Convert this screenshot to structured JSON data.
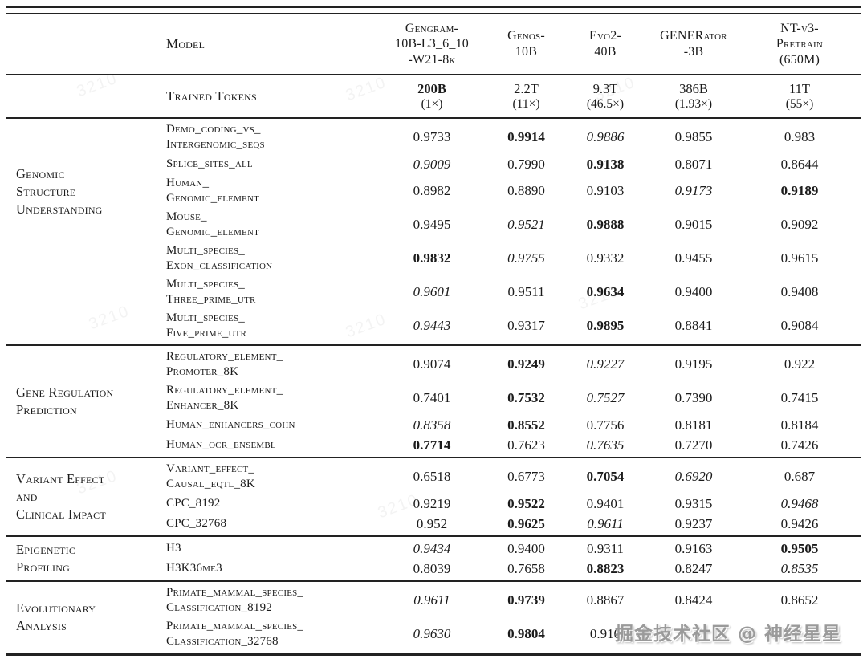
{
  "header": {
    "model_label": "Model",
    "columns": [
      {
        "name": "Gengram-\n10B-L3_6_10\n-W21-8k"
      },
      {
        "name": "Genos-\n10B"
      },
      {
        "name": "Evo2-\n40B"
      },
      {
        "name": "GENERator\n-3B"
      },
      {
        "name": "NT-v3-\nPretrain\n(650M)"
      }
    ],
    "trained_tokens_label": "Trained Tokens",
    "trained_tokens": [
      {
        "tokens": "200B",
        "multiplier": "(1×)"
      },
      {
        "tokens": "2.2T",
        "multiplier": "(11×)"
      },
      {
        "tokens": "9.3T",
        "multiplier": "(46.5×)"
      },
      {
        "tokens": "386B",
        "multiplier": "(1.93×)"
      },
      {
        "tokens": "11T",
        "multiplier": "(55×)"
      }
    ]
  },
  "value_styles_legend": {
    "b": "bold (best)",
    "i": "italic (second best)",
    "": "normal"
  },
  "sections": [
    {
      "category": "Genomic\nStructure\nUnderstanding",
      "rows": [
        {
          "task": "Demo_coding_vs_\nIntergenomic_seqs",
          "values": [
            [
              "0.9733",
              ""
            ],
            [
              "0.9914",
              "b"
            ],
            [
              "0.9886",
              "i"
            ],
            [
              "0.9855",
              ""
            ],
            [
              "0.983",
              ""
            ]
          ]
        },
        {
          "task": "Splice_sites_all",
          "values": [
            [
              "0.9009",
              "i"
            ],
            [
              "0.7990",
              ""
            ],
            [
              "0.9138",
              "b"
            ],
            [
              "0.8071",
              ""
            ],
            [
              "0.8644",
              ""
            ]
          ]
        },
        {
          "task": "Human_\nGenomic_element",
          "values": [
            [
              "0.8982",
              ""
            ],
            [
              "0.8890",
              ""
            ],
            [
              "0.9103",
              ""
            ],
            [
              "0.9173",
              "i"
            ],
            [
              "0.9189",
              "b"
            ]
          ]
        },
        {
          "task": "Mouse_\nGenomic_element",
          "values": [
            [
              "0.9495",
              ""
            ],
            [
              "0.9521",
              "i"
            ],
            [
              "0.9888",
              "b"
            ],
            [
              "0.9015",
              ""
            ],
            [
              "0.9092",
              ""
            ]
          ]
        },
        {
          "task": "Multi_species_\nExon_classification",
          "values": [
            [
              "0.9832",
              "b"
            ],
            [
              "0.9755",
              "i"
            ],
            [
              "0.9332",
              ""
            ],
            [
              "0.9455",
              ""
            ],
            [
              "0.9615",
              ""
            ]
          ]
        },
        {
          "task": "Multi_species_\nThree_prime_utr",
          "values": [
            [
              "0.9601",
              "i"
            ],
            [
              "0.9511",
              ""
            ],
            [
              "0.9634",
              "b"
            ],
            [
              "0.9400",
              ""
            ],
            [
              "0.9408",
              ""
            ]
          ]
        },
        {
          "task": "Multi_species_\nFive_prime_utr",
          "values": [
            [
              "0.9443",
              "i"
            ],
            [
              "0.9317",
              ""
            ],
            [
              "0.9895",
              "b"
            ],
            [
              "0.8841",
              ""
            ],
            [
              "0.9084",
              ""
            ]
          ]
        }
      ]
    },
    {
      "category": "Gene Regulation\nPrediction",
      "rows": [
        {
          "task": "Regulatory_element_\nPromoter_8K",
          "values": [
            [
              "0.9074",
              ""
            ],
            [
              "0.9249",
              "b"
            ],
            [
              "0.9227",
              "i"
            ],
            [
              "0.9195",
              ""
            ],
            [
              "0.922",
              ""
            ]
          ]
        },
        {
          "task": "Regulatory_element_\nEnhancer_8K",
          "values": [
            [
              "0.7401",
              ""
            ],
            [
              "0.7532",
              "b"
            ],
            [
              "0.7527",
              "i"
            ],
            [
              "0.7390",
              ""
            ],
            [
              "0.7415",
              ""
            ]
          ]
        },
        {
          "task": "Human_enhancers_cohn",
          "values": [
            [
              "0.8358",
              "i"
            ],
            [
              "0.8552",
              "b"
            ],
            [
              "0.7756",
              ""
            ],
            [
              "0.8181",
              ""
            ],
            [
              "0.8184",
              ""
            ]
          ]
        },
        {
          "task": "Human_ocr_ensembl",
          "values": [
            [
              "0.7714",
              "b"
            ],
            [
              "0.7623",
              ""
            ],
            [
              "0.7635",
              "i"
            ],
            [
              "0.7270",
              ""
            ],
            [
              "0.7426",
              ""
            ]
          ]
        }
      ]
    },
    {
      "category": "Variant Effect\nand\nClinical Impact",
      "rows": [
        {
          "task": "Variant_effect_\nCausal_eqtl_8K",
          "values": [
            [
              "0.6518",
              ""
            ],
            [
              "0.6773",
              ""
            ],
            [
              "0.7054",
              "b"
            ],
            [
              "0.6920",
              "i"
            ],
            [
              "0.687",
              ""
            ]
          ]
        },
        {
          "task": "CPC_8192",
          "values": [
            [
              "0.9219",
              ""
            ],
            [
              "0.9522",
              "b"
            ],
            [
              "0.9401",
              ""
            ],
            [
              "0.9315",
              ""
            ],
            [
              "0.9468",
              "i"
            ]
          ]
        },
        {
          "task": "CPC_32768",
          "values": [
            [
              "0.952",
              ""
            ],
            [
              "0.9625",
              "b"
            ],
            [
              "0.9611",
              "i"
            ],
            [
              "0.9237",
              ""
            ],
            [
              "0.9426",
              ""
            ]
          ]
        }
      ]
    },
    {
      "category": "Epigenetic\n Profiling",
      "rows": [
        {
          "task": "H3",
          "values": [
            [
              "0.9434",
              "i"
            ],
            [
              "0.9400",
              ""
            ],
            [
              "0.9311",
              ""
            ],
            [
              "0.9163",
              ""
            ],
            [
              "0.9505",
              "b"
            ]
          ]
        },
        {
          "task": "H3K36me3",
          "values": [
            [
              "0.8039",
              ""
            ],
            [
              "0.7658",
              ""
            ],
            [
              "0.8823",
              "b"
            ],
            [
              "0.8247",
              ""
            ],
            [
              "0.8535",
              "i"
            ]
          ]
        }
      ]
    },
    {
      "category": "Evolutionary\nAnalysis",
      "rows": [
        {
          "task": "Primate_mammal_species_\nClassification_8192",
          "values": [
            [
              "0.9611",
              "i"
            ],
            [
              "0.9739",
              "b"
            ],
            [
              "0.8867",
              ""
            ],
            [
              "0.8424",
              ""
            ],
            [
              "0.8652",
              ""
            ]
          ]
        },
        {
          "task": "Primate_mammal_species_\nClassification_32768",
          "values": [
            [
              "0.9630",
              "i"
            ],
            [
              "0.9804",
              "b"
            ],
            [
              "0.910",
              ""
            ],
            [
              "",
              ""
            ],
            [
              "",
              ""
            ]
          ]
        }
      ]
    }
  ],
  "watermark": {
    "text": "掘金技术社区 @ 神经星星"
  },
  "faint_watermark_text": "3210"
}
